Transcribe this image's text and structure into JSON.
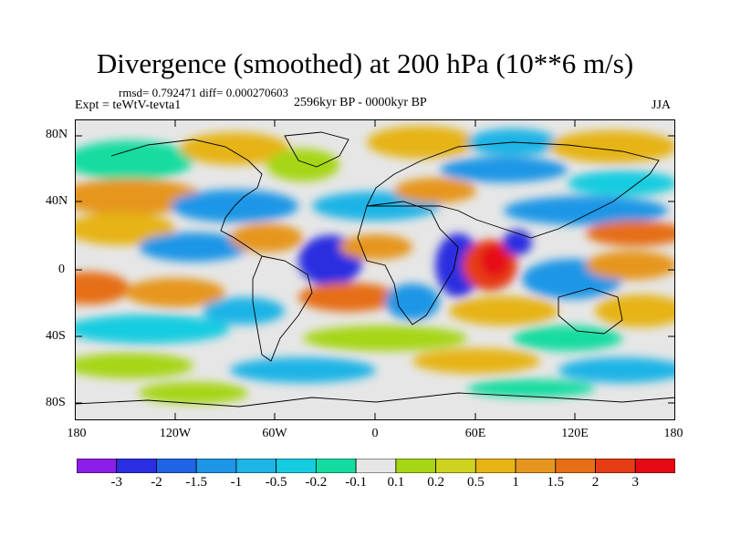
{
  "title": "Divergence (smoothed) at 200 hPa (10**6 m/s)",
  "stats": "rmsd= 0.792471 diff= 0.000270603",
  "experiment": "Expt = teWtV-tevta1",
  "period": "2596kyr BP - 0000kyr BP",
  "season": "JJA",
  "map": {
    "lat_labels": [
      "80N",
      "40N",
      "0",
      "40S",
      "80S"
    ],
    "lon_labels": [
      "180",
      "120W",
      "60W",
      "0",
      "60E",
      "120E",
      "180"
    ]
  },
  "colorbar": {
    "labels": [
      "-3",
      "-2",
      "-1.5",
      "-1",
      "-0.5",
      "-0.2",
      "-0.1",
      "0.1",
      "0.2",
      "0.5",
      "1",
      "1.5",
      "2",
      "3"
    ],
    "colors": [
      "#8a1ee6",
      "#2a2ee0",
      "#1e64e6",
      "#1e96e6",
      "#1eb4e6",
      "#14cce0",
      "#14dca0",
      "#e6e6e6",
      "#a6d614",
      "#cdd21e",
      "#e6b414",
      "#e6961e",
      "#e66e14",
      "#e63c14",
      "#e60a14"
    ]
  }
}
